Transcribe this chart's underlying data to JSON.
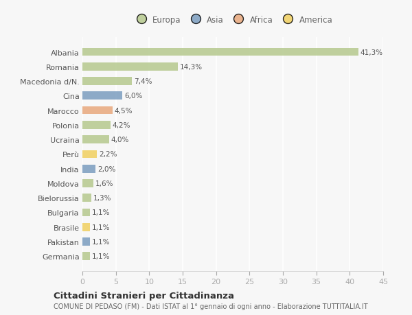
{
  "categories": [
    "Albania",
    "Romania",
    "Macedonia d/N.",
    "Cina",
    "Marocco",
    "Polonia",
    "Ucraina",
    "Perù",
    "India",
    "Moldova",
    "Bielorussia",
    "Bulgaria",
    "Brasile",
    "Pakistan",
    "Germania"
  ],
  "values": [
    41.3,
    14.3,
    7.4,
    6.0,
    4.5,
    4.2,
    4.0,
    2.2,
    2.0,
    1.6,
    1.3,
    1.1,
    1.1,
    1.1,
    1.1
  ],
  "labels": [
    "41,3%",
    "14,3%",
    "7,4%",
    "6,0%",
    "4,5%",
    "4,2%",
    "4,0%",
    "2,2%",
    "2,0%",
    "1,6%",
    "1,3%",
    "1,1%",
    "1,1%",
    "1,1%",
    "1,1%"
  ],
  "colors": [
    "#b5c98e",
    "#b5c98e",
    "#b5c98e",
    "#7b9dbf",
    "#e8a87c",
    "#b5c98e",
    "#b5c98e",
    "#f0d060",
    "#7b9dbf",
    "#b5c98e",
    "#b5c98e",
    "#b5c98e",
    "#f0d060",
    "#7b9dbf",
    "#b5c98e"
  ],
  "legend_labels": [
    "Europa",
    "Asia",
    "Africa",
    "America"
  ],
  "legend_colors": [
    "#b5c98e",
    "#7b9dbf",
    "#e8a87c",
    "#f0d060"
  ],
  "xlim": [
    0,
    45
  ],
  "xticks": [
    0,
    5,
    10,
    15,
    20,
    25,
    30,
    35,
    40,
    45
  ],
  "title": "Cittadini Stranieri per Cittadinanza",
  "subtitle": "COMUNE DI PEDASO (FM) - Dati ISTAT al 1° gennaio di ogni anno - Elaborazione TUTTITALIA.IT",
  "bg_color": "#f7f7f7",
  "grid_color": "#ffffff",
  "bar_height": 0.55,
  "label_color": "#555555",
  "ytick_color": "#555555",
  "xtick_color": "#aaaaaa"
}
